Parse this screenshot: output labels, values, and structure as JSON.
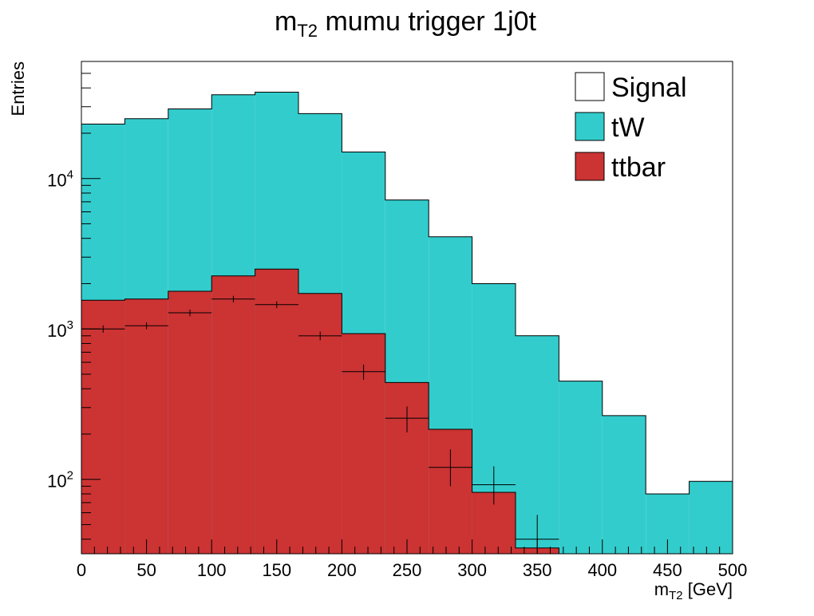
{
  "chart_data": {
    "type": "bar",
    "title": "m_{T2} mumu trigger 1j0t",
    "title_main": "m",
    "title_sub": "T2",
    "title_rest": " mumu trigger 1j0t",
    "xlabel_main": "m",
    "xlabel_sub": "T2",
    "xlabel_rest": " [GeV]",
    "ylabel": "Entries",
    "xlim": [
      0,
      500
    ],
    "ylim": [
      32,
      60000
    ],
    "yscale": "log",
    "grid": false,
    "legend_position": "top-right",
    "bin_edges": [
      0,
      33.33,
      66.67,
      100,
      133.33,
      166.67,
      200,
      233.33,
      266.67,
      300,
      333.33,
      366.67,
      400,
      433.33,
      466.67,
      500
    ],
    "x_ticks": [
      0,
      50,
      100,
      150,
      200,
      250,
      300,
      350,
      400,
      450,
      500
    ],
    "x_tick_labels": [
      "0",
      "50",
      "100",
      "150",
      "200",
      "250",
      "300",
      "350",
      "400",
      "450",
      "500"
    ],
    "y_ticks": [
      100,
      1000,
      10000
    ],
    "y_tick_base": "10",
    "y_tick_exps": [
      "2",
      "3",
      "4"
    ],
    "series": [
      {
        "name": "tW",
        "stacked_total": true,
        "color": "#33cccc",
        "values": [
          23000,
          25000,
          29000,
          36000,
          37500,
          27000,
          15000,
          7200,
          4100,
          2000,
          900,
          450,
          265,
          80,
          97
        ]
      },
      {
        "name": "ttbar",
        "color": "#cc3333",
        "values": [
          1550,
          1580,
          1780,
          2250,
          2500,
          1720,
          930,
          440,
          215,
          82,
          35,
          32,
          0,
          0,
          0
        ]
      },
      {
        "name": "Signal",
        "color": "#ffffff",
        "values": []
      }
    ],
    "data_points": {
      "x": [
        16.67,
        50,
        83.33,
        116.67,
        150,
        183.33,
        216.67,
        250,
        283.33,
        316.67,
        350
      ],
      "y": [
        1000,
        1050,
        1280,
        1580,
        1450,
        900,
        520,
        255,
        120,
        92,
        40
      ],
      "err_low": [
        55,
        55,
        65,
        80,
        75,
        60,
        60,
        50,
        30,
        24,
        13
      ],
      "err_high": [
        55,
        55,
        65,
        80,
        75,
        60,
        60,
        50,
        38,
        30,
        18
      ]
    },
    "legend": [
      {
        "label": "Signal",
        "color": "#ffffff"
      },
      {
        "label": "tW",
        "color": "#33cccc"
      },
      {
        "label": "ttbar",
        "color": "#cc3333"
      }
    ]
  }
}
